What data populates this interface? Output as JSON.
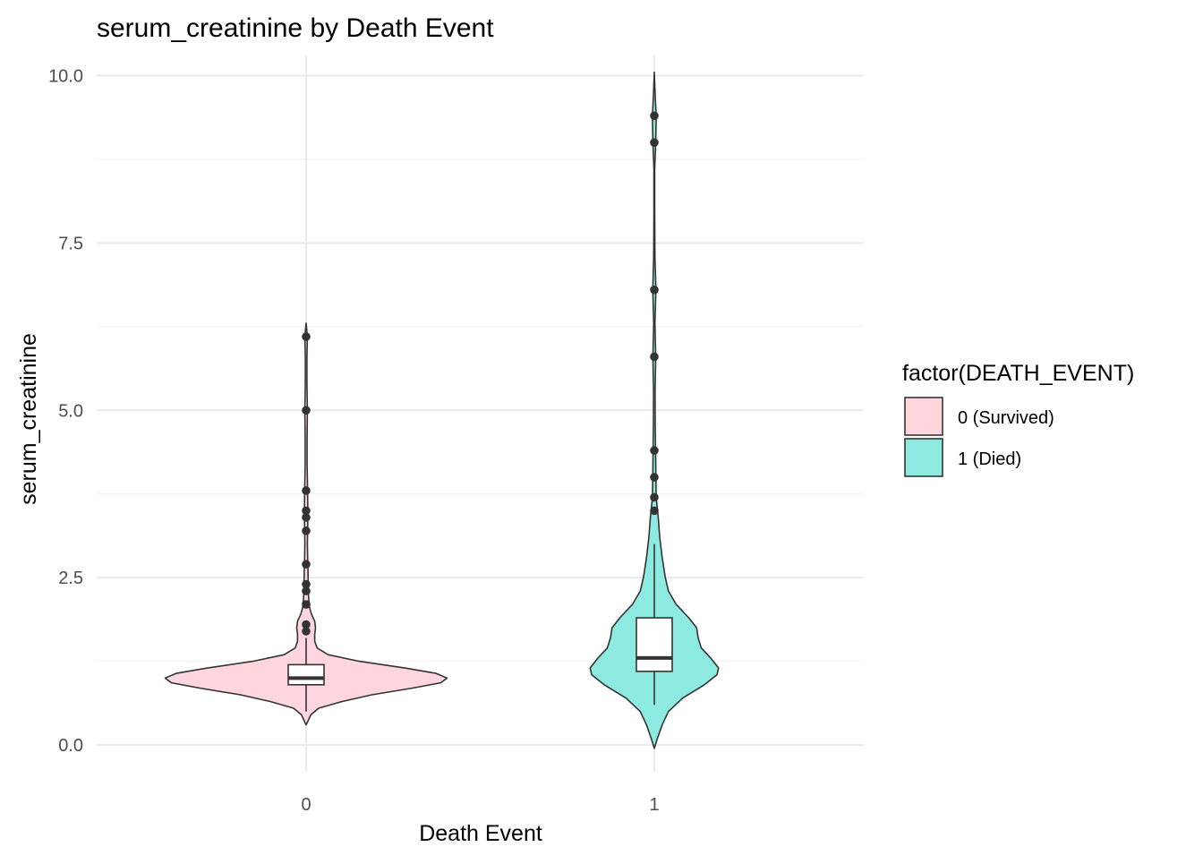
{
  "chart_data": {
    "type": "violin",
    "title": "serum_creatinine by Death Event",
    "xlabel": "Death Event",
    "ylabel": "serum_creatinine",
    "ylim": [
      -0.4,
      10.3
    ],
    "y_ticks": [
      "0.0",
      "2.5",
      "5.0",
      "7.5",
      "10.0"
    ],
    "y_tick_values": [
      0,
      2.5,
      5,
      7.5,
      10
    ],
    "categories": [
      "0",
      "1"
    ],
    "grid": true,
    "legend": {
      "title": "factor(DEATH_EVENT)",
      "position": "right",
      "entries": [
        {
          "label": "0 (Survived)",
          "color": "#FFD6DE"
        },
        {
          "label": "1 (Died)",
          "color": "#8DEAE1"
        }
      ]
    },
    "groups": [
      {
        "category": "0",
        "legend_label": "0 (Survived)",
        "fill": "#FFD6DE",
        "violin_range": [
          0.3,
          6.3
        ],
        "density": [
          [
            0.3,
            0.0
          ],
          [
            0.45,
            0.03
          ],
          [
            0.55,
            0.08
          ],
          [
            0.65,
            0.23
          ],
          [
            0.75,
            0.42
          ],
          [
            0.85,
            0.68
          ],
          [
            0.93,
            0.86
          ],
          [
            1.0,
            0.9
          ],
          [
            1.07,
            0.83
          ],
          [
            1.15,
            0.63
          ],
          [
            1.25,
            0.34
          ],
          [
            1.35,
            0.14
          ],
          [
            1.45,
            0.07
          ],
          [
            1.55,
            0.055
          ],
          [
            1.65,
            0.055
          ],
          [
            1.75,
            0.06
          ],
          [
            1.85,
            0.055
          ],
          [
            1.95,
            0.035
          ],
          [
            2.05,
            0.022
          ],
          [
            2.2,
            0.016
          ],
          [
            2.4,
            0.013
          ],
          [
            2.6,
            0.012
          ],
          [
            2.75,
            0.01
          ],
          [
            3.0,
            0.008
          ],
          [
            3.3,
            0.01
          ],
          [
            3.5,
            0.011
          ],
          [
            3.8,
            0.009
          ],
          [
            4.2,
            0.006
          ],
          [
            4.6,
            0.006
          ],
          [
            5.0,
            0.008
          ],
          [
            5.4,
            0.005
          ],
          [
            5.8,
            0.005
          ],
          [
            6.1,
            0.008
          ],
          [
            6.3,
            0.0
          ]
        ],
        "box": {
          "q1": 0.9,
          "median": 1.0,
          "q3": 1.2,
          "whisker_low": 0.5,
          "whisker_high": 1.6
        },
        "outliers": [
          1.7,
          1.8,
          2.1,
          2.3,
          2.4,
          2.7,
          3.2,
          3.4,
          3.5,
          3.8,
          5.0,
          6.1
        ]
      },
      {
        "category": "1",
        "legend_label": "1 (Died)",
        "fill": "#8DEAE1",
        "violin_range": [
          -0.05,
          10.05
        ],
        "density": [
          [
            -0.05,
            0.0
          ],
          [
            0.1,
            0.02
          ],
          [
            0.3,
            0.05
          ],
          [
            0.5,
            0.09
          ],
          [
            0.7,
            0.18
          ],
          [
            0.9,
            0.32
          ],
          [
            1.05,
            0.4
          ],
          [
            1.15,
            0.41
          ],
          [
            1.3,
            0.36
          ],
          [
            1.45,
            0.3
          ],
          [
            1.6,
            0.28
          ],
          [
            1.75,
            0.27
          ],
          [
            1.9,
            0.22
          ],
          [
            2.1,
            0.14
          ],
          [
            2.3,
            0.09
          ],
          [
            2.5,
            0.07
          ],
          [
            2.8,
            0.05
          ],
          [
            3.1,
            0.035
          ],
          [
            3.4,
            0.025
          ],
          [
            3.7,
            0.012
          ],
          [
            4.0,
            0.01
          ],
          [
            4.4,
            0.008
          ],
          [
            4.8,
            0.006
          ],
          [
            5.3,
            0.005
          ],
          [
            5.8,
            0.009
          ],
          [
            6.3,
            0.004
          ],
          [
            6.8,
            0.01
          ],
          [
            7.3,
            0.004
          ],
          [
            8.0,
            0.002
          ],
          [
            8.6,
            0.002
          ],
          [
            9.0,
            0.009
          ],
          [
            9.4,
            0.012
          ],
          [
            9.7,
            0.006
          ],
          [
            10.05,
            0.0
          ]
        ],
        "box": {
          "q1": 1.1,
          "median": 1.3,
          "q3": 1.9,
          "whisker_low": 0.6,
          "whisker_high": 3.0
        },
        "outliers": [
          3.5,
          3.7,
          4.0,
          4.4,
          5.8,
          6.8,
          9.0,
          9.4
        ]
      }
    ]
  }
}
